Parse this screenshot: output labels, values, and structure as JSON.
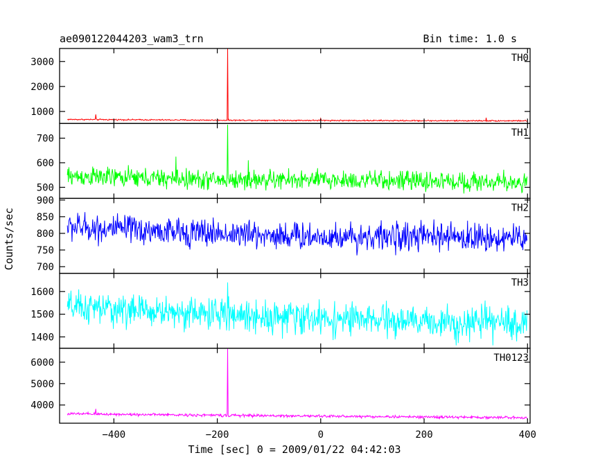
{
  "header": {
    "title": "ae090122044203_wam3_trn",
    "bin_time": "Bin time: 1.0 s"
  },
  "chart_data": {
    "type": "line",
    "title": "ae090122044203_wam3_trn",
    "subtitle": "Bin time: 1.0 s",
    "xlabel": "Time [sec] 0 = 2009/01/22 04:42:03",
    "ylabel": "Counts/sec",
    "xlim": [
      -505,
      405
    ],
    "x_ticks": [
      -400,
      -200,
      0,
      200,
      400
    ],
    "x_tick_labels": [
      "−400",
      "−200",
      "0",
      "200",
      "400"
    ],
    "panels": [
      {
        "name": "TH0",
        "color": "#ff0000",
        "ylim": [
          520,
          3520
        ],
        "y_ticks": [
          1000,
          2000,
          3000
        ],
        "baseline": [
          [
            -490,
            680
          ],
          [
            -200,
            650
          ],
          [
            0,
            640
          ],
          [
            200,
            630
          ],
          [
            400,
            625
          ]
        ],
        "noise": 18,
        "spikes": [
          [
            -435,
            880
          ],
          [
            -180,
            3520
          ],
          [
            0,
            720
          ],
          [
            320,
            750
          ]
        ]
      },
      {
        "name": "TH1",
        "color": "#00ff00",
        "ylim": [
          455,
          760
        ],
        "y_ticks": [
          500,
          600,
          700
        ],
        "baseline": [
          [
            -490,
            545
          ],
          [
            -200,
            530
          ],
          [
            0,
            530
          ],
          [
            200,
            525
          ],
          [
            400,
            520
          ]
        ],
        "noise": 28,
        "spikes": [
          [
            -180,
            755
          ],
          [
            -280,
            625
          ],
          [
            -140,
            610
          ]
        ]
      },
      {
        "name": "TH2",
        "color": "#0000ff",
        "ylim": [
          680,
          905
        ],
        "y_ticks": [
          700,
          750,
          800,
          850,
          900
        ],
        "baseline": [
          [
            -490,
            820
          ],
          [
            -300,
            805
          ],
          [
            0,
            790
          ],
          [
            200,
            790
          ],
          [
            400,
            785
          ]
        ],
        "noise": 30,
        "spikes": []
      },
      {
        "name": "TH3",
        "color": "#00ffff",
        "ylim": [
          1350,
          1680
        ],
        "y_ticks": [
          1400,
          1500,
          1600
        ],
        "baseline": [
          [
            -490,
            1530
          ],
          [
            -200,
            1500
          ],
          [
            0,
            1480
          ],
          [
            200,
            1465
          ],
          [
            400,
            1460
          ]
        ],
        "noise": 50,
        "spikes": [
          [
            -180,
            1640
          ]
        ]
      },
      {
        "name": "TH0123",
        "color": "#ff00ff",
        "ylim": [
          3150,
          6650
        ],
        "y_ticks": [
          4000,
          5000,
          6000
        ],
        "baseline": [
          [
            -490,
            3590
          ],
          [
            -200,
            3520
          ],
          [
            0,
            3480
          ],
          [
            200,
            3440
          ],
          [
            400,
            3410
          ]
        ],
        "noise": 45,
        "spikes": [
          [
            -435,
            3820
          ],
          [
            -180,
            6620
          ]
        ]
      }
    ]
  }
}
